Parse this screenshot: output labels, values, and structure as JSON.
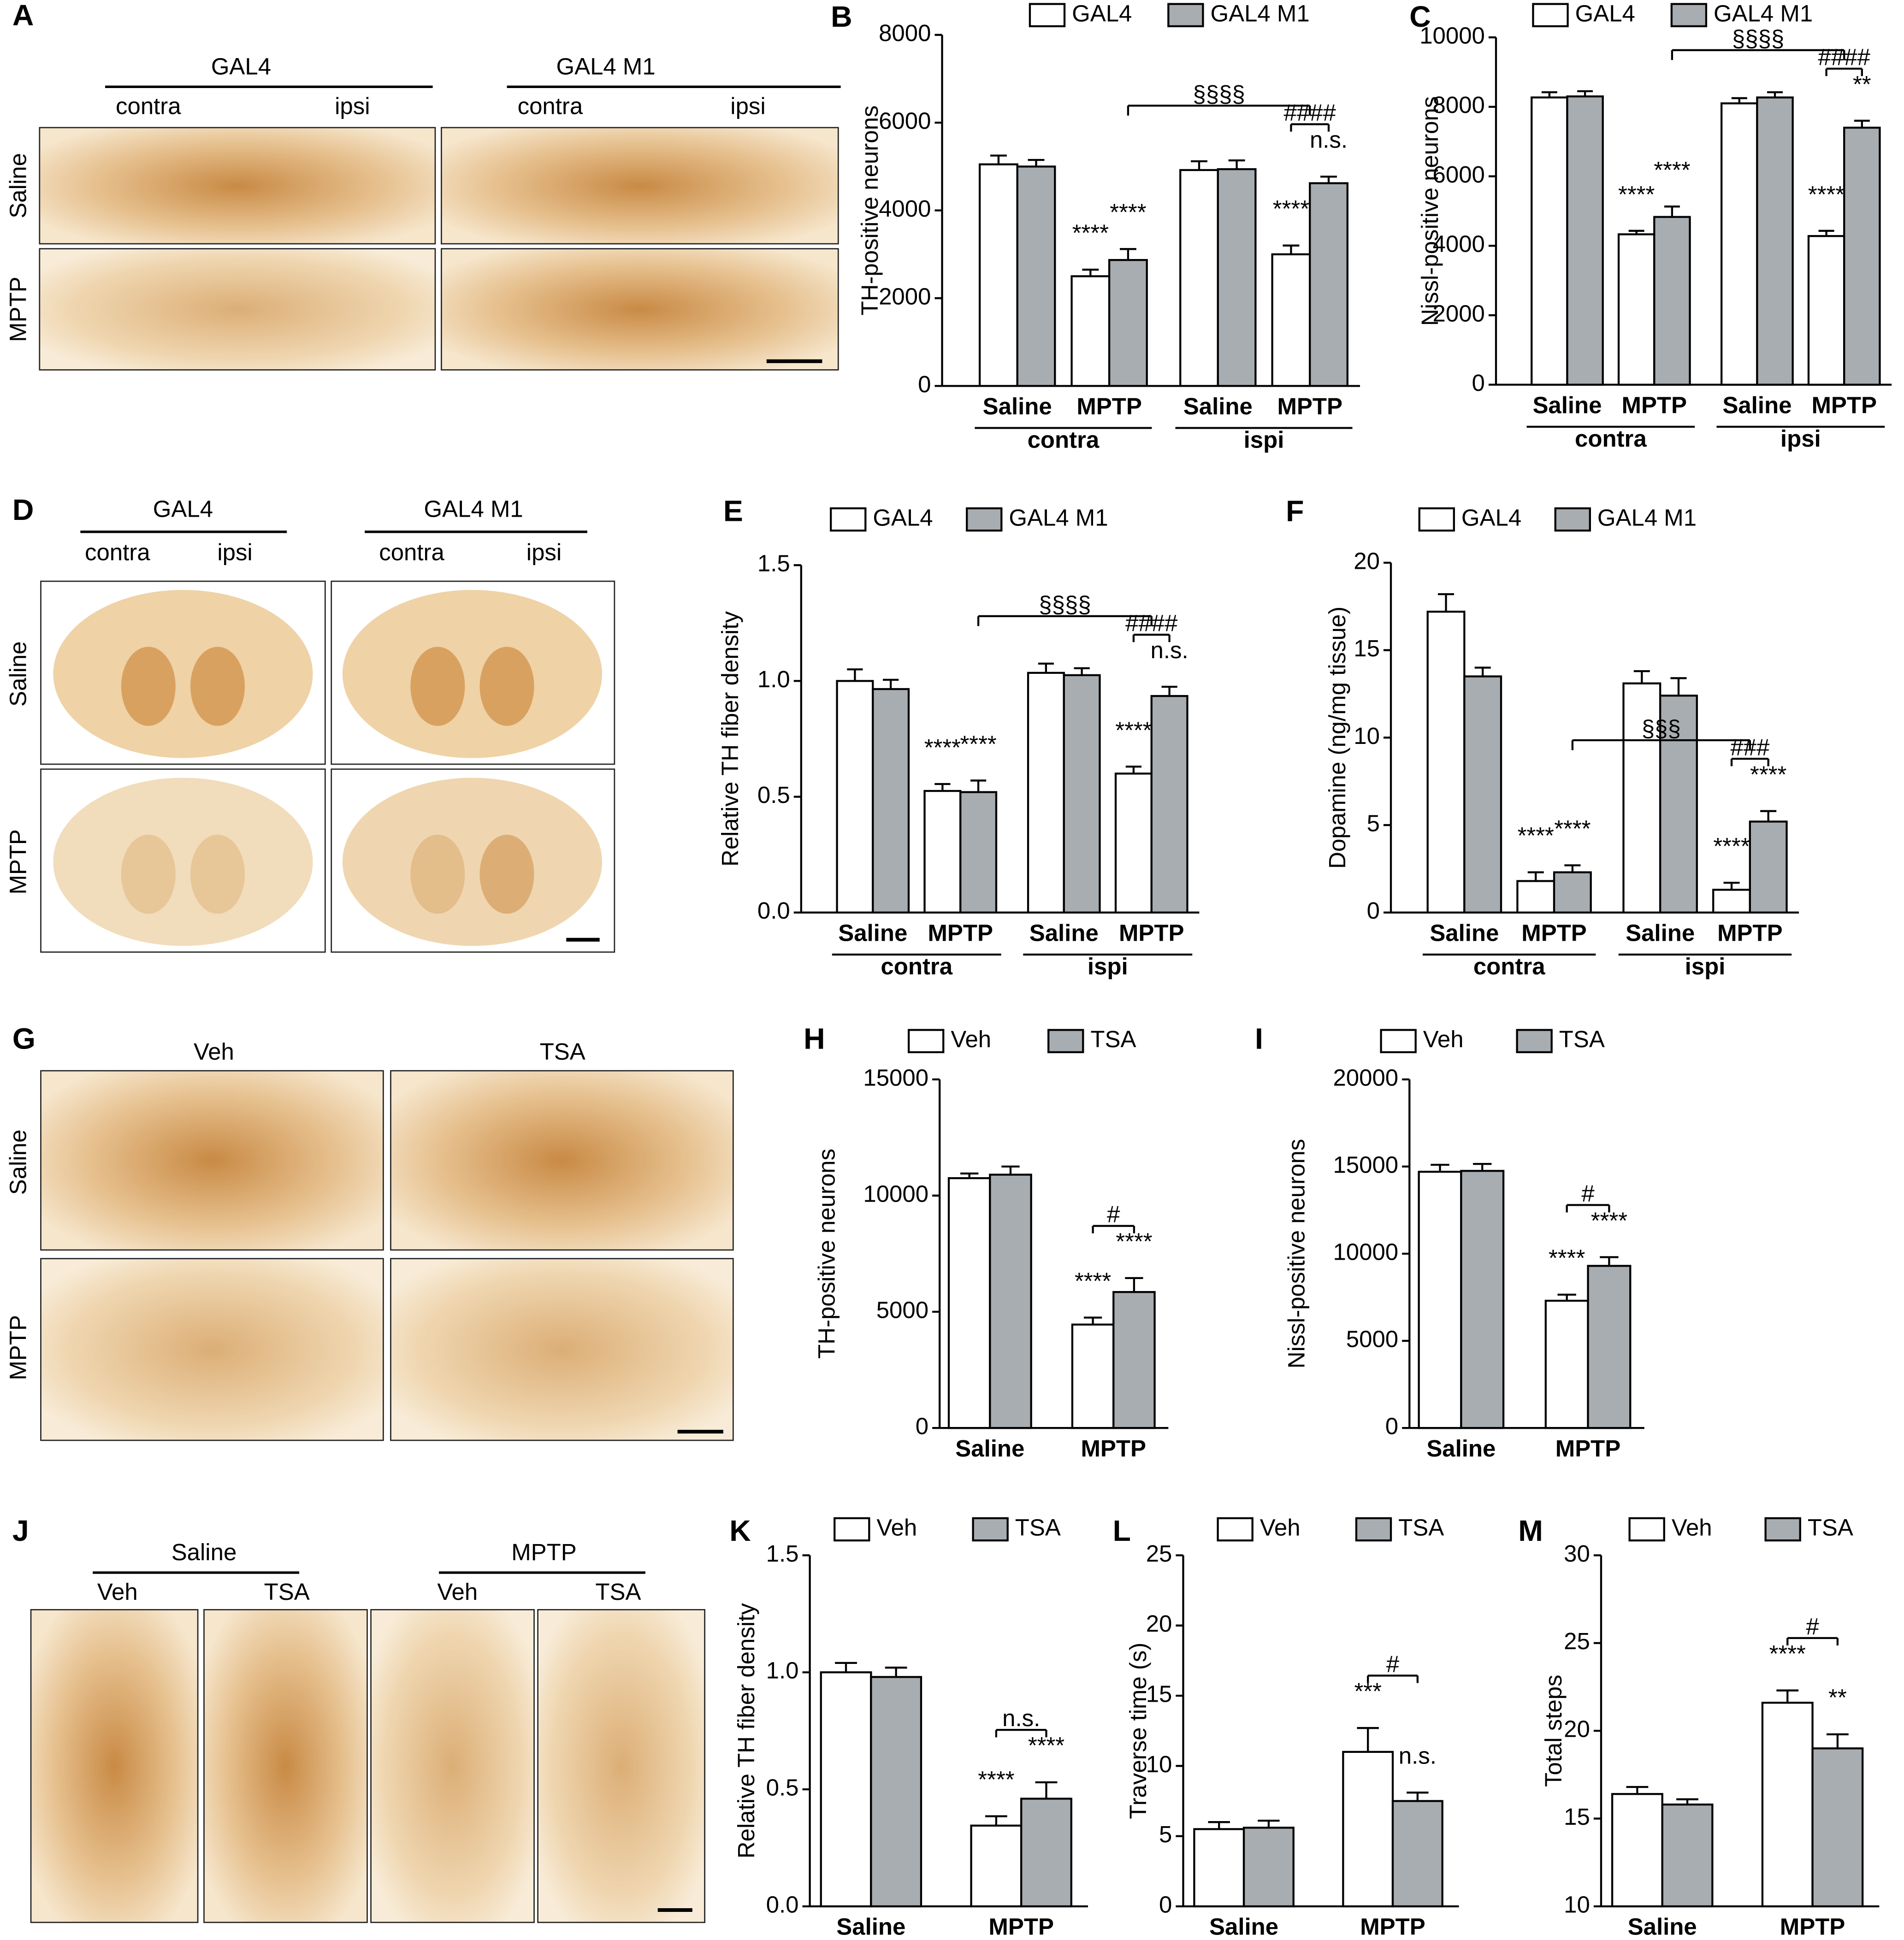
{
  "image_panels": [
    {
      "panel": "A",
      "columns": [
        {
          "title": "GAL4",
          "sides": [
            "contra",
            "ipsi"
          ]
        },
        {
          "title": "GAL4 M1",
          "sides": [
            "contra",
            "ipsi"
          ]
        }
      ],
      "rows": [
        "Saline",
        "MPTP"
      ]
    },
    {
      "panel": "D",
      "columns": [
        {
          "title": "GAL4",
          "sides": [
            "contra",
            "ipsi"
          ]
        },
        {
          "title": "GAL4 M1",
          "sides": [
            "contra",
            "ipsi"
          ]
        }
      ],
      "rows": [
        "Saline",
        "MPTP"
      ]
    },
    {
      "panel": "G",
      "columns": [
        "Veh",
        "TSA"
      ],
      "rows": [
        "Saline",
        "MPTP"
      ]
    },
    {
      "panel": "J",
      "groups": [
        {
          "title": "Saline",
          "columns": [
            "Veh",
            "TSA"
          ]
        },
        {
          "title": "MPTP",
          "columns": [
            "Veh",
            "TSA"
          ]
        }
      ]
    }
  ],
  "chart_data": [
    {
      "type": "bar",
      "panel": "B",
      "ylabel": "TH-positive neurons",
      "ylim": [
        0,
        8000
      ],
      "yticks": [
        0,
        2000,
        4000,
        6000,
        8000
      ],
      "categories": [
        "Saline",
        "MPTP",
        "Saline",
        "MPTP"
      ],
      "groups": [
        "contra",
        "ispi"
      ],
      "series": [
        {
          "name": "GAL4",
          "color": "#ffffff",
          "values": [
            5050,
            2500,
            4920,
            3000
          ],
          "errors": [
            200,
            150,
            200,
            200
          ],
          "labels": [
            null,
            "****",
            null,
            "****"
          ]
        },
        {
          "name": "GAL4 M1",
          "color": "#a8adb1",
          "values": [
            5000,
            2870,
            4940,
            4620
          ],
          "errors": [
            150,
            250,
            200,
            150
          ],
          "labels": [
            null,
            "****",
            null,
            "n.s."
          ]
        }
      ],
      "brackets": [
        {
          "text": "####",
          "category": 3
        },
        {
          "text": "§§§§",
          "categories": [
            1,
            3
          ]
        }
      ]
    },
    {
      "type": "bar",
      "panel": "C",
      "ylabel": "Nissl-positive neurons",
      "ylim": [
        0,
        10000
      ],
      "yticks": [
        0,
        2000,
        4000,
        6000,
        8000,
        10000
      ],
      "categories": [
        "Saline",
        "MPTP",
        "Saline",
        "MPTP"
      ],
      "groups": [
        "contra",
        "ipsi"
      ],
      "series": [
        {
          "name": "GAL4",
          "color": "#ffffff",
          "values": [
            8270,
            4330,
            8100,
            4280
          ],
          "errors": [
            150,
            100,
            150,
            150
          ],
          "labels": [
            null,
            "****",
            null,
            "****"
          ]
        },
        {
          "name": "GAL4 M1",
          "color": "#a8adb1",
          "values": [
            8300,
            4830,
            8270,
            7400
          ],
          "errors": [
            150,
            300,
            150,
            200
          ],
          "labels": [
            null,
            "****",
            null,
            "**"
          ]
        }
      ],
      "brackets": [
        {
          "text": "####",
          "category": 3
        },
        {
          "text": "§§§§",
          "categories": [
            1,
            3
          ]
        }
      ]
    },
    {
      "type": "bar",
      "panel": "E",
      "ylabel": "Relative TH fiber density",
      "ylim": [
        0,
        1.5
      ],
      "yticks": [
        {
          "value": 0,
          "label": "0.0"
        },
        0.5,
        {
          "value": 1,
          "label": "1.0"
        },
        1.5
      ],
      "categories": [
        "Saline",
        "MPTP",
        "Saline",
        "MPTP"
      ],
      "groups": [
        "contra",
        "ispi"
      ],
      "series": [
        {
          "name": "GAL4",
          "color": "#ffffff",
          "values": [
            1.0,
            0.525,
            1.035,
            0.6
          ],
          "errors": [
            0.05,
            0.03,
            0.04,
            0.03
          ],
          "labels": [
            null,
            "****",
            null,
            "****"
          ]
        },
        {
          "name": "GAL4 M1",
          "color": "#a8adb1",
          "values": [
            0.965,
            0.52,
            1.025,
            0.935
          ],
          "errors": [
            0.04,
            0.05,
            0.03,
            0.04
          ],
          "labels": [
            null,
            "****",
            null,
            "n.s."
          ]
        }
      ],
      "brackets": [
        {
          "text": "####",
          "category": 3
        },
        {
          "text": "§§§§",
          "categories": [
            1,
            3
          ]
        }
      ]
    },
    {
      "type": "bar",
      "panel": "F",
      "ylabel": "Dopamine (ng/mg tissue)",
      "ylim": [
        0,
        20
      ],
      "yticks": [
        0,
        5,
        10,
        15,
        20
      ],
      "categories": [
        "Saline",
        "MPTP",
        "Saline",
        "MPTP"
      ],
      "groups": [
        "contra",
        "ispi"
      ],
      "series": [
        {
          "name": "GAL4",
          "color": "#ffffff",
          "values": [
            17.2,
            1.8,
            13.1,
            1.3
          ],
          "errors": [
            1.0,
            0.5,
            0.7,
            0.4
          ],
          "labels": [
            null,
            "****",
            null,
            "****"
          ]
        },
        {
          "name": "GAL4 M1",
          "color": "#a8adb1",
          "values": [
            13.5,
            2.3,
            12.4,
            5.2
          ],
          "errors": [
            0.5,
            0.4,
            1.0,
            0.6
          ],
          "labels": [
            null,
            "****",
            null,
            "****"
          ]
        }
      ],
      "brackets": [
        {
          "text": "###",
          "category": 3
        },
        {
          "text": "§§§",
          "categories": [
            1,
            3
          ]
        }
      ]
    },
    {
      "type": "bar",
      "panel": "H",
      "ylabel": "TH-positive neurons",
      "ylim": [
        0,
        15000
      ],
      "yticks": [
        0,
        5000,
        10000,
        15000
      ],
      "categories": [
        "Saline",
        "MPTP"
      ],
      "series": [
        {
          "name": "Veh",
          "color": "#ffffff",
          "values": [
            10750,
            4450
          ],
          "errors": [
            200,
            300
          ],
          "labels": [
            null,
            "****"
          ]
        },
        {
          "name": "TSA",
          "color": "#a8adb1",
          "values": [
            10900,
            5850
          ],
          "errors": [
            350,
            600
          ],
          "labels": [
            null,
            "****"
          ]
        }
      ],
      "brackets": [
        {
          "text": "#",
          "category": 1
        }
      ]
    },
    {
      "type": "bar",
      "panel": "I",
      "ylabel": "Nissl-positive neurons",
      "ylim": [
        0,
        20000
      ],
      "yticks": [
        0,
        5000,
        10000,
        15000,
        20000
      ],
      "categories": [
        "Saline",
        "MPTP"
      ],
      "series": [
        {
          "name": "Veh",
          "color": "#ffffff",
          "values": [
            14700,
            7300
          ],
          "errors": [
            400,
            350
          ],
          "labels": [
            null,
            "****"
          ]
        },
        {
          "name": "TSA",
          "color": "#a8adb1",
          "values": [
            14750,
            9300
          ],
          "errors": [
            400,
            500
          ],
          "labels": [
            null,
            "****"
          ]
        }
      ],
      "brackets": [
        {
          "text": "#",
          "category": 1
        }
      ]
    },
    {
      "type": "bar",
      "panel": "K",
      "ylabel": "Relative TH fiber density",
      "ylim": [
        0,
        1.5
      ],
      "yticks": [
        {
          "value": 0,
          "label": "0.0"
        },
        0.5,
        {
          "value": 1,
          "label": "1.0"
        },
        1.5
      ],
      "categories": [
        "Saline",
        "MPTP"
      ],
      "series": [
        {
          "name": "Veh",
          "color": "#ffffff",
          "values": [
            1.0,
            0.345
          ],
          "errors": [
            0.04,
            0.04
          ],
          "labels": [
            null,
            "****"
          ]
        },
        {
          "name": "TSA",
          "color": "#a8adb1",
          "values": [
            0.98,
            0.46
          ],
          "errors": [
            0.04,
            0.07
          ],
          "labels": [
            null,
            "****"
          ]
        }
      ],
      "brackets": [
        {
          "text": "n.s.",
          "category": 1
        }
      ]
    },
    {
      "type": "bar",
      "panel": "L",
      "ylabel": "Traverse time (s)",
      "ylim": [
        0,
        25
      ],
      "yticks": [
        0,
        5,
        10,
        15,
        20,
        25
      ],
      "categories": [
        "Saline",
        "MPTP"
      ],
      "series": [
        {
          "name": "Veh",
          "color": "#ffffff",
          "values": [
            5.5,
            11.0
          ],
          "errors": [
            0.5,
            1.7
          ],
          "labels": [
            null,
            "***"
          ]
        },
        {
          "name": "TSA",
          "color": "#a8adb1",
          "values": [
            5.6,
            7.5
          ],
          "errors": [
            0.5,
            0.6
          ],
          "labels": [
            null,
            "n.s."
          ]
        }
      ],
      "brackets": [
        {
          "text": "#",
          "category": 1
        }
      ]
    },
    {
      "type": "bar",
      "panel": "M",
      "ylabel": "Total steps",
      "ylim": [
        10,
        30
      ],
      "yticks": [
        10,
        15,
        20,
        25,
        30
      ],
      "categories": [
        "Saline",
        "MPTP"
      ],
      "series": [
        {
          "name": "Veh",
          "color": "#ffffff",
          "values": [
            16.4,
            21.6
          ],
          "errors": [
            0.4,
            0.7
          ],
          "labels": [
            null,
            "****"
          ]
        },
        {
          "name": "TSA",
          "color": "#a8adb1",
          "values": [
            15.8,
            19.0
          ],
          "errors": [
            0.3,
            0.8
          ],
          "labels": [
            null,
            "**"
          ]
        }
      ],
      "brackets": [
        {
          "text": "#",
          "category": 1
        }
      ]
    }
  ]
}
